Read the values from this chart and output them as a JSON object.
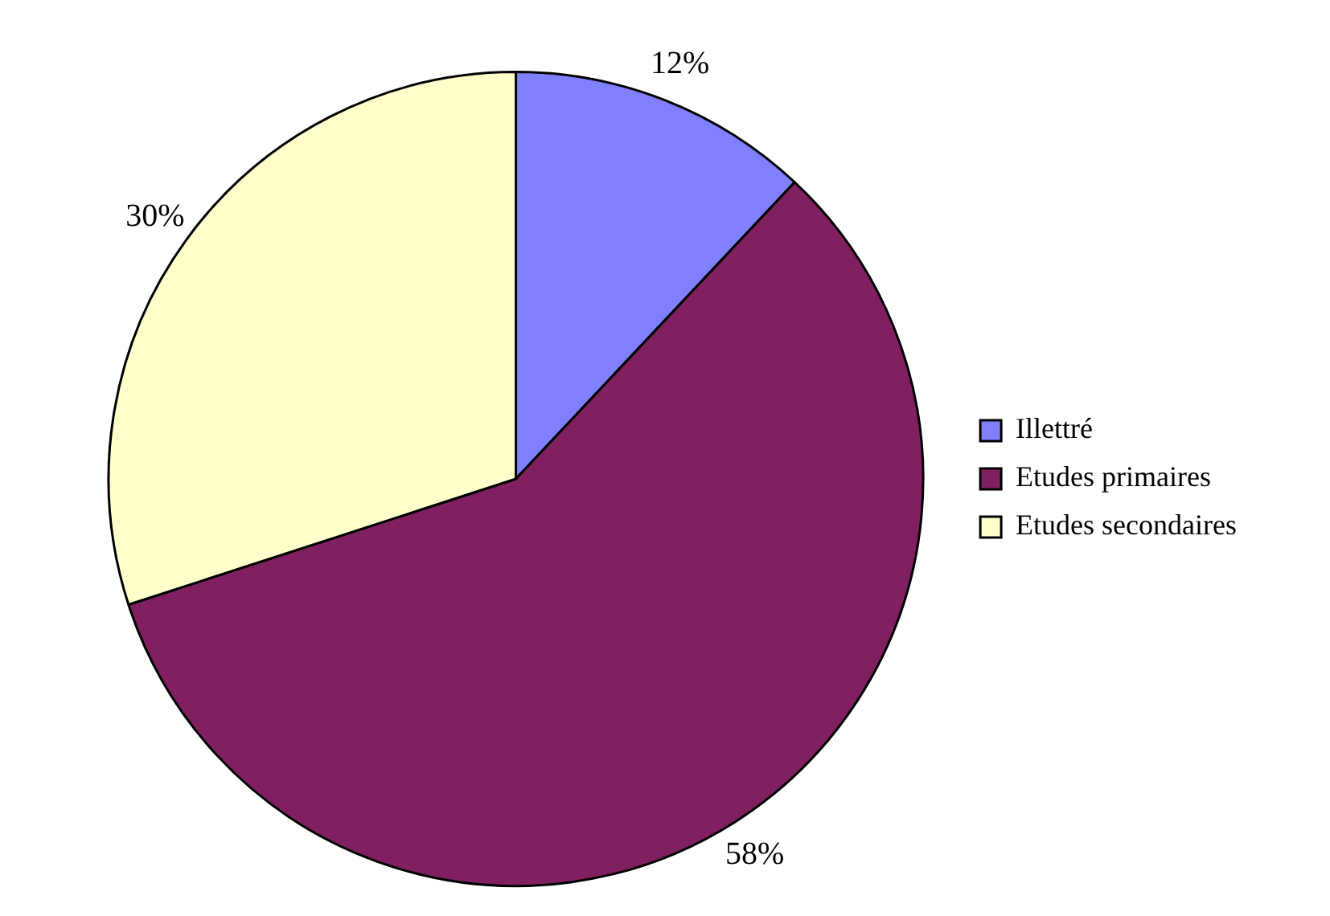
{
  "chart_data": {
    "type": "pie",
    "categories": [
      "Illettré",
      "Etudes primaires",
      "Etudes secondaires"
    ],
    "values": [
      12,
      58,
      30
    ],
    "colors": [
      "#8080ff",
      "#802060",
      "#ffffcc"
    ],
    "value_labels": [
      "12%",
      "58%",
      "30%"
    ],
    "legend": "right"
  }
}
